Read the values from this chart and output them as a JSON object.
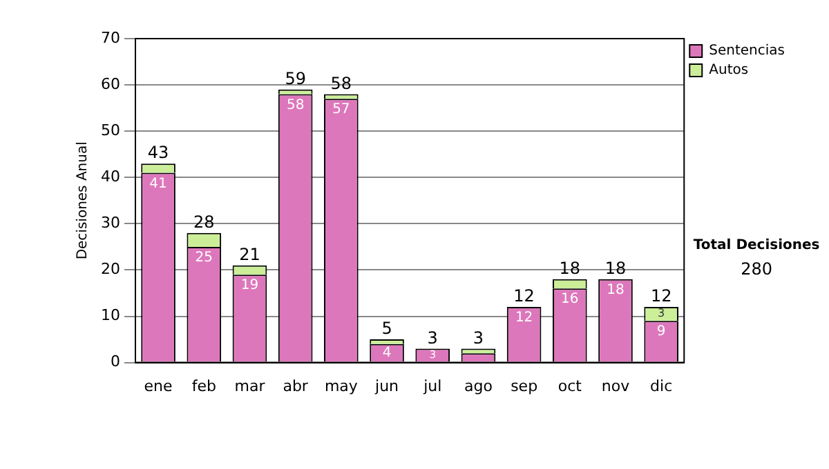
{
  "chart_data": {
    "type": "bar",
    "stacked": true,
    "ylabel": "Decisiones Anual",
    "categories": [
      "ene",
      "feb",
      "mar",
      "abr",
      "may",
      "jun",
      "jul",
      "ago",
      "sep",
      "oct",
      "nov",
      "dic"
    ],
    "series": [
      {
        "name": "Sentencias",
        "color": "#dd77bb",
        "values": [
          41,
          25,
          19,
          58,
          57,
          4,
          3,
          2,
          12,
          16,
          18,
          9
        ],
        "value_labels": [
          "41",
          "25",
          "19",
          "58",
          "57",
          "4",
          "3",
          null,
          "12",
          "16",
          "18",
          "9"
        ]
      },
      {
        "name": "Autos",
        "color": "#ccee99",
        "values": [
          2,
          3,
          2,
          1,
          1,
          1,
          0,
          1,
          0,
          2,
          0,
          3
        ],
        "value_labels": [
          null,
          null,
          null,
          null,
          null,
          null,
          null,
          null,
          null,
          null,
          null,
          "3"
        ]
      }
    ],
    "totals": [
      "43",
      "28",
      "21",
      "59",
      "58",
      "5",
      "3",
      "3",
      "12",
      "18",
      "18",
      "12"
    ],
    "ylim": [
      0,
      70
    ],
    "yticks": [
      0,
      10,
      20,
      30,
      40,
      50,
      60,
      70
    ],
    "grid": "y",
    "legend": "right",
    "annotations": [
      "Total Decisiones",
      "280"
    ]
  }
}
